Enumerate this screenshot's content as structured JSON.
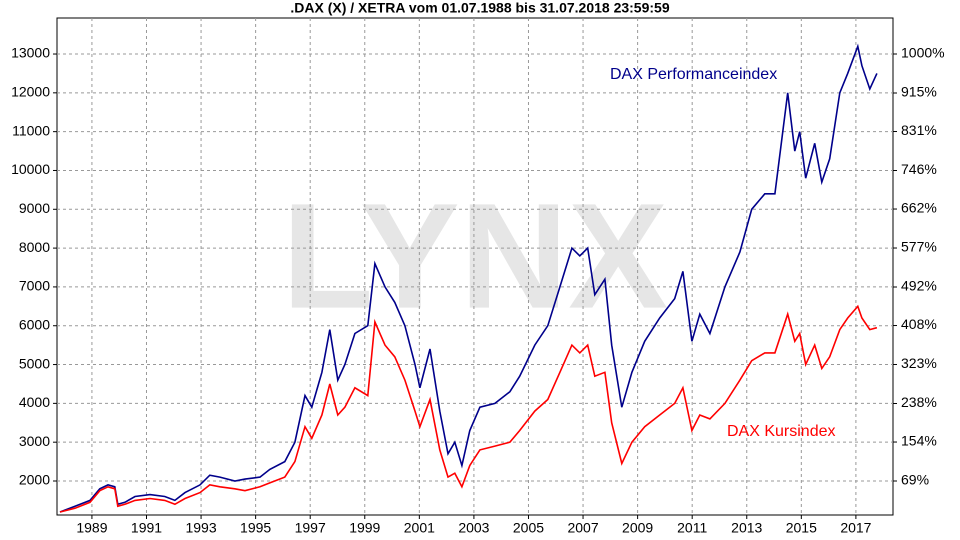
{
  "chart_data": {
    "type": "line",
    "title": ".DAX (X) / XETRA vom 01.07.1988 bis 31.07.2018 23:59:59",
    "watermark": "LYNX",
    "grid": true,
    "x": [
      1987.83,
      1988.38,
      1988.93,
      1989.29,
      1989.59,
      1989.84,
      1989.95,
      1990.21,
      1990.58,
      1991.13,
      1991.67,
      1992.04,
      1992.41,
      1992.96,
      1993.32,
      1993.69,
      1994.24,
      1994.61,
      1995.16,
      1995.52,
      1996.07,
      1996.44,
      1996.81,
      1997.06,
      1997.43,
      1997.72,
      1998.01,
      1998.27,
      1998.64,
      1999.11,
      1999.37,
      1999.74,
      2000.1,
      2000.47,
      2000.84,
      2001.02,
      2001.39,
      2001.75,
      2002.05,
      2002.3,
      2002.56,
      2002.85,
      2003.22,
      2003.77,
      2004.32,
      2004.68,
      2005.23,
      2005.71,
      2006.15,
      2006.59,
      2006.88,
      2007.17,
      2007.43,
      2007.8,
      2008.05,
      2008.42,
      2008.79,
      2009.26,
      2009.81,
      2010.36,
      2010.66,
      2010.99,
      2011.28,
      2011.65,
      2012.2,
      2012.75,
      2013.18,
      2013.66,
      2014.03,
      2014.5,
      2014.76,
      2014.94,
      2015.16,
      2015.49,
      2015.75,
      2016.04,
      2016.41,
      2016.7,
      2017.07,
      2017.22,
      2017.51,
      2017.77
    ],
    "series": [
      {
        "name": "DAX Performanceindex",
        "color": "#00008b",
        "values": [
          1200,
          1350,
          1500,
          1800,
          1900,
          1850,
          1400,
          1450,
          1600,
          1650,
          1600,
          1500,
          1700,
          1900,
          2150,
          2100,
          2000,
          2050,
          2100,
          2300,
          2500,
          3000,
          4200,
          3900,
          4800,
          5900,
          4600,
          5000,
          5800,
          6000,
          7600,
          7000,
          6600,
          6000,
          5000,
          4400,
          5400,
          3800,
          2700,
          3000,
          2400,
          3300,
          3900,
          4000,
          4300,
          4700,
          5500,
          6000,
          7000,
          8000,
          7800,
          8000,
          6800,
          7200,
          5500,
          3900,
          4800,
          5600,
          6200,
          6700,
          7400,
          5600,
          6300,
          5800,
          7000,
          7900,
          9000,
          9400,
          9400,
          12000,
          10500,
          11000,
          9800,
          10700,
          9700,
          10300,
          12000,
          12500,
          13200,
          12700,
          12100,
          12500
        ]
      },
      {
        "name": "DAX Kursindex",
        "color": "#ff0000",
        "values": [
          1200,
          1300,
          1450,
          1750,
          1850,
          1800,
          1350,
          1400,
          1500,
          1550,
          1500,
          1400,
          1550,
          1700,
          1900,
          1850,
          1800,
          1750,
          1850,
          1950,
          2100,
          2500,
          3400,
          3100,
          3700,
          4500,
          3700,
          3900,
          4400,
          4200,
          6100,
          5500,
          5200,
          4600,
          3800,
          3400,
          4100,
          2800,
          2100,
          2200,
          1850,
          2400,
          2800,
          2900,
          3000,
          3300,
          3800,
          4100,
          4800,
          5500,
          5300,
          5500,
          4700,
          4800,
          3500,
          2450,
          3000,
          3400,
          3700,
          4000,
          4400,
          3300,
          3700,
          3600,
          4000,
          4600,
          5100,
          5300,
          5300,
          6300,
          5600,
          5800,
          5000,
          5500,
          4900,
          5200,
          5900,
          6200,
          6500,
          6200,
          5900,
          5950
        ]
      }
    ],
    "xlim": [
      1987.72,
      2018.36
    ],
    "xticks": [
      1989,
      1991,
      1993,
      1995,
      1997,
      1999,
      2001,
      2003,
      2005,
      2007,
      2009,
      2011,
      2013,
      2015,
      2017
    ],
    "ylim": [
      1124,
      13928
    ],
    "yticks": [
      2000,
      3000,
      4000,
      5000,
      6000,
      7000,
      8000,
      9000,
      10000,
      11000,
      12000,
      13000
    ],
    "y2lim": [
      -5.1,
      1078.5
    ],
    "y2ticks": [
      {
        "value": 69,
        "label": "69%"
      },
      {
        "value": 154,
        "label": "154%"
      },
      {
        "value": 238,
        "label": "238%"
      },
      {
        "value": 323,
        "label": "323%"
      },
      {
        "value": 408,
        "label": "408%"
      },
      {
        "value": 492,
        "label": "492%"
      },
      {
        "value": 577,
        "label": "577%"
      },
      {
        "value": 662,
        "label": "662%"
      },
      {
        "value": 746,
        "label": "746%"
      },
      {
        "value": 831,
        "label": "831%"
      },
      {
        "value": 915,
        "label": "915%"
      },
      {
        "value": 1000,
        "label": "1000%"
      }
    ]
  }
}
